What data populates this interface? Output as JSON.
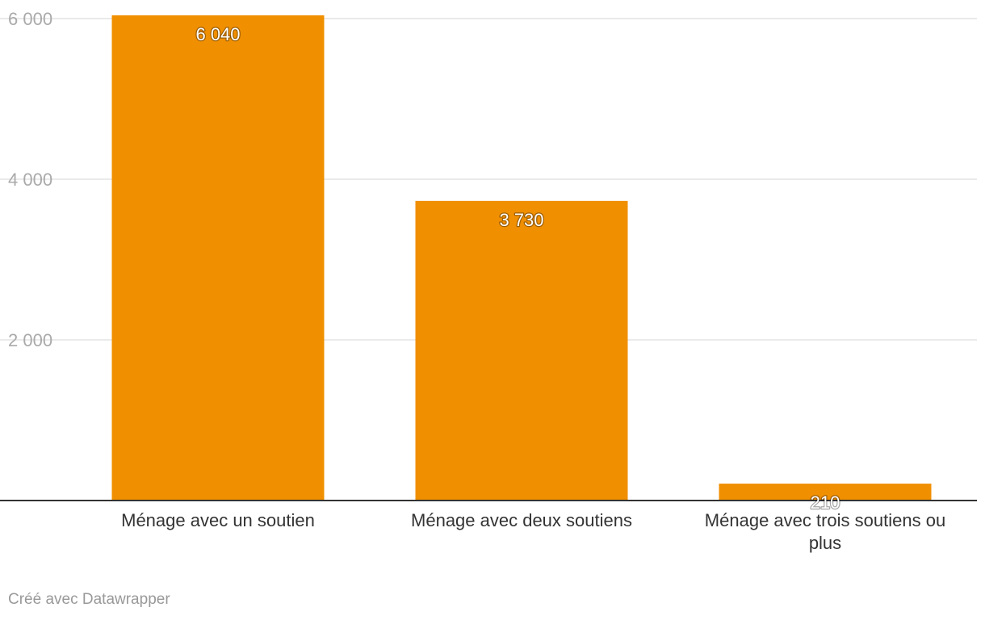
{
  "chart_data": {
    "type": "bar",
    "categories": [
      "Ménage avec un soutien",
      "Ménage avec deux soutiens",
      "Ménage avec trois soutiens ou plus"
    ],
    "values": [
      6040,
      3730,
      210
    ],
    "value_labels": [
      "6 040",
      "3 730",
      "210"
    ],
    "title": "",
    "xlabel": "",
    "ylabel": "",
    "ylim": [
      0,
      6000
    ],
    "yticks": [
      2000,
      4000,
      6000
    ],
    "ytick_labels": [
      "2 000",
      "4 000",
      "6 000"
    ],
    "grid": true,
    "bar_color": "#f08f00"
  },
  "footer": {
    "credit": "Créé avec Datawrapper"
  }
}
